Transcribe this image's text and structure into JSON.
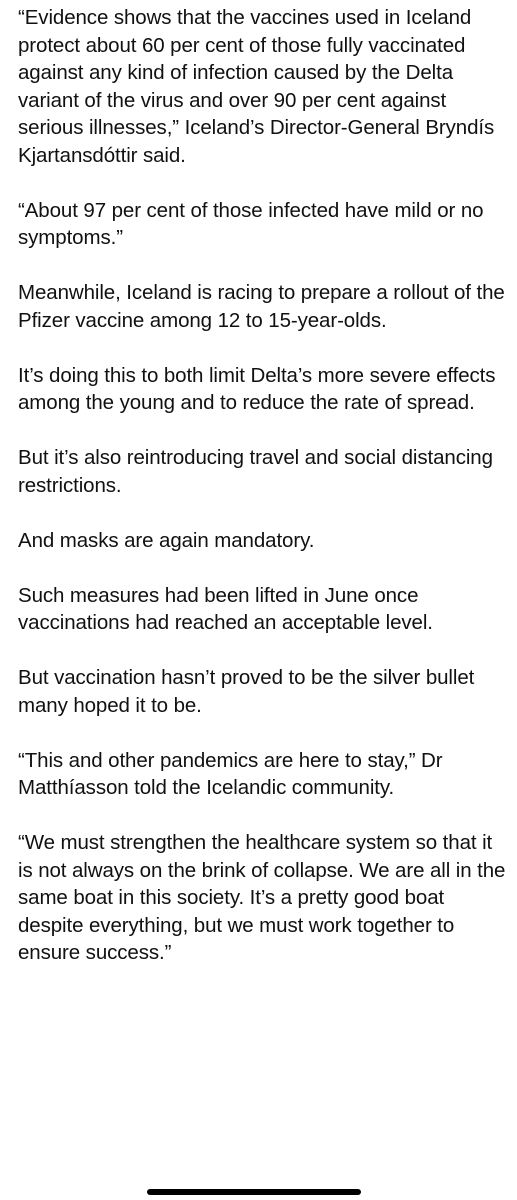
{
  "article": {
    "paragraphs": [
      "“Evidence shows that the vaccines used in Iceland protect about 60 per cent of those fully vaccinated against any kind of infection caused by the Delta variant of the virus and over 90 per cent against serious illnesses,” Iceland’s Director-General Bryndís Kjartansdóttir said.",
      "“About 97 per cent of those infected have mild or no symptoms.”",
      "Meanwhile, Iceland is racing to prepare a rollout of the Pfizer vaccine among 12 to 15-year-olds.",
      "It’s doing this to both limit Delta’s more severe effects among the young and to reduce the rate of spread.",
      "But it’s also reintroducing travel and social distancing restrictions.",
      "And masks are again mandatory.",
      "Such measures had been lifted in June once vaccinations had reached an acceptable level.",
      "But vaccination hasn’t proved to be the silver bullet many hoped it to be.",
      "“This and other pandemics are here to stay,” Dr Matthíasson told the Icelandic community.",
      "“We must strengthen the healthcare system so that it is not always on the brink of collapse. We are all in the same boat in this society. It’s a pretty good boat despite everything, but we must work together to ensure success.”"
    ]
  }
}
